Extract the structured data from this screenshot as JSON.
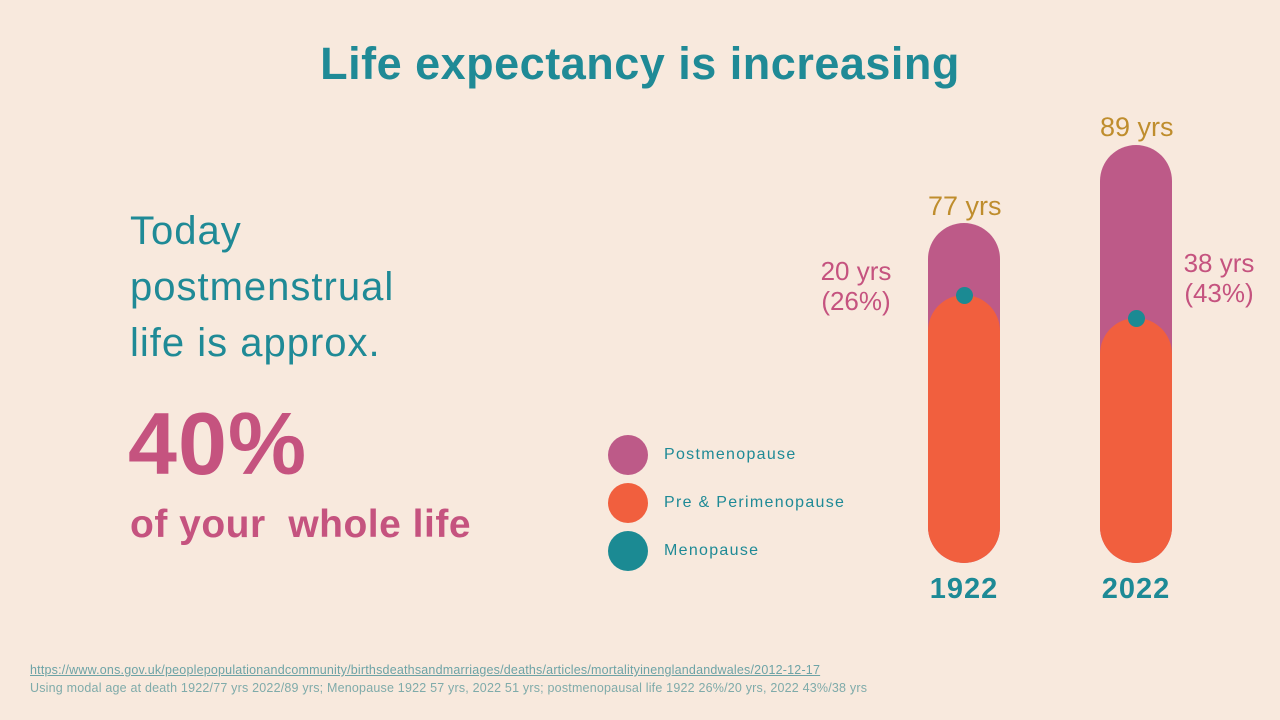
{
  "slide": {
    "title": "Life expectancy is increasing"
  },
  "colors": {
    "background": "#f8e9dd",
    "teal": "#1f8a96",
    "pink_text": "#c5537f",
    "bar_pink": "#bd5a88",
    "bar_orange": "#f15f3e",
    "dot_teal": "#1b8a93",
    "gold": "#bf8d2d",
    "footer_teal": "#6da3a6"
  },
  "intro": {
    "lines": [
      "Today",
      "postmenstrual",
      "life is approx."
    ],
    "stat": "40%",
    "caption": "of your  whole life"
  },
  "legend": {
    "items": [
      {
        "label": "Postmenopause",
        "color": "#bd5a88"
      },
      {
        "label": "Pre & Perimenopause",
        "color": "#f15f3e"
      },
      {
        "label": "Menopause",
        "color": "#1b8a93"
      }
    ]
  },
  "bars": [
    {
      "year": "1922",
      "total_label": "77 yrs",
      "annotation_line1": "20 yrs",
      "annotation_line2": "(26%)"
    },
    {
      "year": "2022",
      "total_label": "89 yrs",
      "annotation_line1": "38 yrs",
      "annotation_line2": "(43%)"
    }
  ],
  "footer": {
    "link": "https://www.ons.gov.uk/peoplepopulationandcommunity/birthsdeathsandmarriages/deaths/articles/mortalityinenglandandwales/2012-12-17",
    "note": "Using modal age at death 1922/77 yrs 2022/89 yrs; Menopause 1922 57 yrs, 2022 51 yrs; postmenopausal life 1922 26%/20 yrs, 2022 43%/38 yrs"
  },
  "chart_data": {
    "type": "bar",
    "stacked": true,
    "orientation": "vertical",
    "title": "Life expectancy is increasing",
    "categories": [
      "1922",
      "2022"
    ],
    "series": [
      {
        "name": "Pre & Perimenopause",
        "color": "#f15f3e",
        "values": [
          57,
          51
        ]
      },
      {
        "name": "Postmenopause",
        "color": "#bd5a88",
        "values": [
          20,
          38
        ]
      }
    ],
    "totals": {
      "values": [
        77,
        89
      ],
      "labels": [
        "77 yrs",
        "89 yrs"
      ],
      "label_color": "#bf8d2d"
    },
    "markers": [
      {
        "name": "Menopause",
        "category": "1922",
        "age": 57
      },
      {
        "name": "Menopause",
        "category": "2022",
        "age": 51
      }
    ],
    "annotations": [
      {
        "category": "1922",
        "text": "20 yrs (26%)",
        "side": "left"
      },
      {
        "category": "2022",
        "text": "38 yrs (43%)",
        "side": "right"
      }
    ],
    "legend_entries": [
      "Postmenopause",
      "Pre & Perimenopause",
      "Menopause"
    ],
    "legend_position": "left-of-bars",
    "grid": false,
    "xlabel": "",
    "ylabel": ""
  }
}
